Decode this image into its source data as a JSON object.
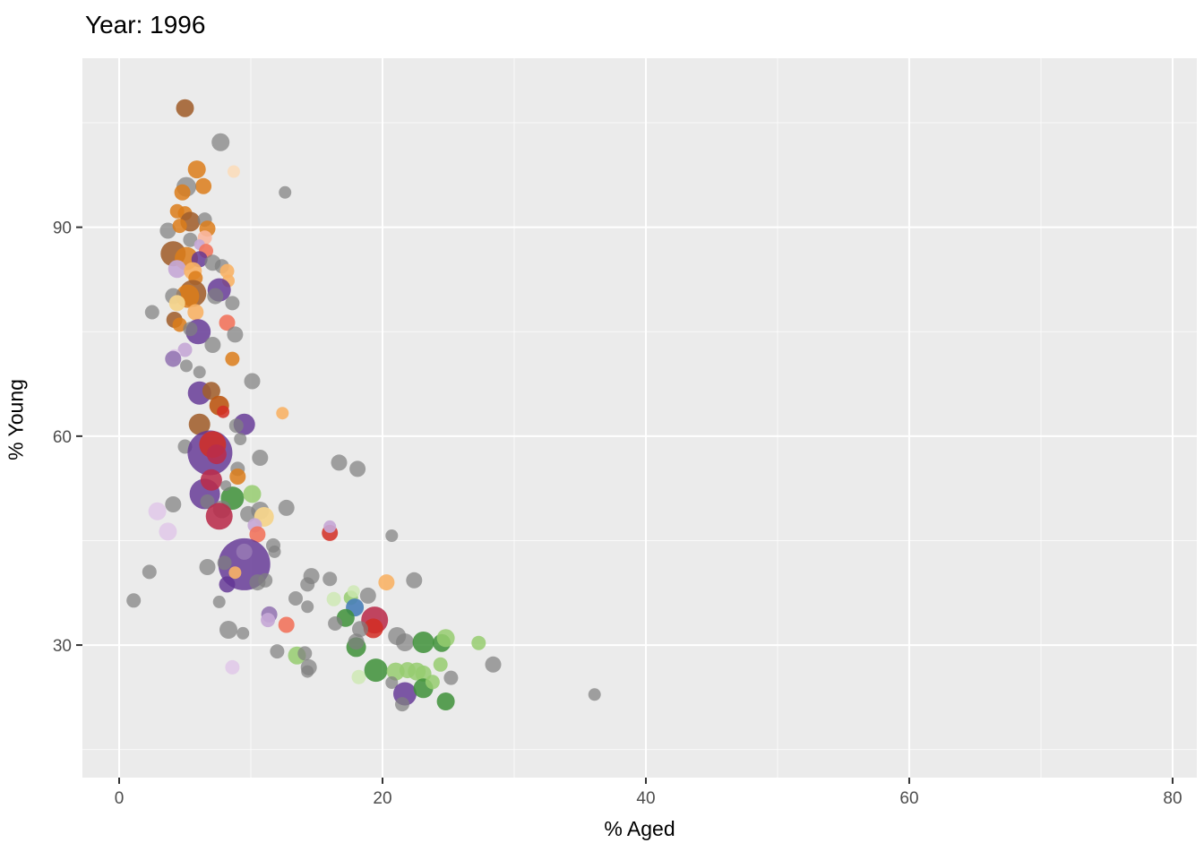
{
  "title": "Year: 1996",
  "labels": {
    "x_axis": "% Aged",
    "y_axis": "% Young"
  },
  "chart_data": {
    "type": "scatter",
    "title": "Year: 1996",
    "xlabel": "% Aged",
    "ylabel": "% Young",
    "x_ticks": [
      0,
      20,
      40,
      60,
      80
    ],
    "x_minor_ticks": [
      10,
      30,
      50,
      70
    ],
    "y_ticks": [
      30,
      60,
      90
    ],
    "y_minor_ticks": [
      15,
      45,
      75,
      105
    ],
    "xlim": [
      -2.79,
      81.84
    ],
    "ylim": [
      10.97,
      114.27
    ],
    "grid": "on",
    "legend": "none",
    "panel_bg": "#EBEBEB",
    "grid_major_color": "#FFFFFF",
    "grid_minor_color": "#FFFFFF",
    "tick_color": "#333333",
    "tick_label_color": "#4d4d4d",
    "palette": {
      "gray": "rgba(128,128,128,0.72)",
      "brown": "rgba(161,95,44,0.88)",
      "orange": "rgba(220,125,26,0.85)",
      "orange-dark": "rgba(188,88,20,0.9)",
      "orange-light": "rgba(248,178,102,0.9)",
      "orange-pale": "rgba(250,221,190,0.95)",
      "khaki": "rgba(244,212,140,0.95)",
      "pink": "rgba(250,183,160,0.9)",
      "salmon": "rgba(242,116,93,0.9)",
      "red": "rgba(210,45,35,0.85)",
      "crimson": "rgba(185,44,75,0.88)",
      "purple": "rgba(98,52,148,0.82)",
      "purple-med": "rgba(150,120,180,0.9)",
      "purple-light": "rgba(198,168,214,0.92)",
      "purple-pale": "rgba(226,203,233,0.95)",
      "green": "rgba(62,145,56,0.85)",
      "green-light": "rgba(150,204,112,0.85)",
      "green-pale": "rgba(205,232,178,0.8)",
      "blue": "rgba(72,126,184,0.9)"
    },
    "points": [
      [
        5.0,
        107.1,
        10,
        "brown"
      ],
      [
        7.7,
        102.2,
        10,
        "gray"
      ],
      [
        8.7,
        98.0,
        7,
        "orange-pale"
      ],
      [
        12.6,
        95.0,
        7,
        "gray"
      ],
      [
        5.9,
        98.3,
        10,
        "orange"
      ],
      [
        6.4,
        95.9,
        9,
        "orange"
      ],
      [
        5.1,
        95.8,
        11,
        "gray"
      ],
      [
        4.8,
        95.0,
        9,
        "orange"
      ],
      [
        4.4,
        92.3,
        8,
        "orange"
      ],
      [
        5.0,
        92.0,
        8,
        "orange"
      ],
      [
        5.4,
        90.8,
        11,
        "brown"
      ],
      [
        6.5,
        91.1,
        8,
        "gray"
      ],
      [
        3.7,
        89.5,
        9,
        "gray"
      ],
      [
        4.6,
        90.2,
        8,
        "orange"
      ],
      [
        6.7,
        89.8,
        9,
        "orange"
      ],
      [
        6.5,
        88.5,
        8,
        "pink"
      ],
      [
        5.4,
        88.2,
        8,
        "gray"
      ],
      [
        6.1,
        87.5,
        6,
        "purple-light"
      ],
      [
        6.6,
        86.6,
        8,
        "salmon"
      ],
      [
        4.1,
        86.2,
        14,
        "brown"
      ],
      [
        5.1,
        85.5,
        13,
        "orange"
      ],
      [
        6.1,
        85.4,
        9,
        "purple"
      ],
      [
        7.1,
        84.9,
        9,
        "gray"
      ],
      [
        7.8,
        84.4,
        8,
        "gray"
      ],
      [
        8.2,
        83.7,
        8,
        "orange-light"
      ],
      [
        4.4,
        84.0,
        10,
        "purple-light"
      ],
      [
        5.6,
        83.7,
        10,
        "orange-light"
      ],
      [
        5.8,
        82.7,
        8,
        "orange"
      ],
      [
        8.3,
        82.3,
        7,
        "orange-light"
      ],
      [
        7.6,
        81.0,
        13,
        "purple"
      ],
      [
        5.6,
        80.5,
        15,
        "brown"
      ],
      [
        5.2,
        80.1,
        13,
        "orange"
      ],
      [
        7.3,
        80.1,
        9,
        "gray"
      ],
      [
        4.1,
        80.1,
        9,
        "gray"
      ],
      [
        4.4,
        79.1,
        9,
        "khaki"
      ],
      [
        8.6,
        79.1,
        8,
        "gray"
      ],
      [
        2.5,
        77.8,
        8,
        "gray"
      ],
      [
        5.8,
        77.8,
        9,
        "orange-light"
      ],
      [
        4.2,
        76.7,
        9,
        "brown"
      ],
      [
        4.6,
        76.0,
        8,
        "orange"
      ],
      [
        8.2,
        76.3,
        9,
        "salmon"
      ],
      [
        6.0,
        75.0,
        14,
        "purple"
      ],
      [
        5.4,
        75.4,
        8,
        "gray"
      ],
      [
        7.1,
        73.1,
        9,
        "gray"
      ],
      [
        8.8,
        74.6,
        9,
        "gray"
      ],
      [
        5.0,
        72.4,
        8,
        "purple-light"
      ],
      [
        4.2,
        71.6,
        7,
        "purple-pale"
      ],
      [
        4.1,
        71.1,
        9,
        "purple-med"
      ],
      [
        6.1,
        69.2,
        7,
        "gray"
      ],
      [
        5.1,
        70.1,
        7,
        "gray"
      ],
      [
        8.6,
        71.1,
        8,
        "orange"
      ],
      [
        10.1,
        67.9,
        9,
        "gray"
      ],
      [
        6.1,
        66.2,
        13,
        "purple"
      ],
      [
        7.0,
        66.5,
        10,
        "brown"
      ],
      [
        7.6,
        64.4,
        11,
        "orange-dark"
      ],
      [
        7.9,
        63.5,
        7,
        "red"
      ],
      [
        12.4,
        63.3,
        7,
        "orange-light"
      ],
      [
        9.5,
        61.7,
        12,
        "purple"
      ],
      [
        8.9,
        61.5,
        8,
        "gray"
      ],
      [
        9.2,
        59.6,
        7,
        "gray"
      ],
      [
        6.1,
        61.7,
        12,
        "brown"
      ],
      [
        5.0,
        58.5,
        8,
        "gray"
      ],
      [
        6.9,
        57.6,
        25,
        "purple"
      ],
      [
        7.1,
        58.8,
        15,
        "red"
      ],
      [
        7.4,
        57.4,
        11,
        "crimson"
      ],
      [
        10.7,
        56.9,
        9,
        "gray"
      ],
      [
        9.0,
        55.3,
        8,
        "gray"
      ],
      [
        9.0,
        54.2,
        9,
        "orange"
      ],
      [
        6.5,
        51.7,
        17,
        "purple"
      ],
      [
        7.0,
        53.7,
        12,
        "crimson"
      ],
      [
        8.6,
        51.1,
        13,
        "green"
      ],
      [
        10.1,
        51.7,
        10,
        "green-light"
      ],
      [
        8.1,
        52.9,
        6,
        "gray"
      ],
      [
        6.7,
        50.6,
        8,
        "gray"
      ],
      [
        7.8,
        49.5,
        10,
        "gray"
      ],
      [
        7.6,
        48.5,
        15,
        "crimson"
      ],
      [
        4.1,
        50.2,
        9,
        "gray"
      ],
      [
        2.9,
        49.2,
        10,
        "purple-pale"
      ],
      [
        3.7,
        46.3,
        10,
        "purple-pale"
      ],
      [
        9.8,
        48.8,
        9,
        "gray"
      ],
      [
        10.7,
        49.3,
        10,
        "gray"
      ],
      [
        11.0,
        48.4,
        11,
        "khaki"
      ],
      [
        10.3,
        47.2,
        8,
        "purple-light"
      ],
      [
        10.5,
        45.9,
        9,
        "salmon"
      ],
      [
        11.7,
        44.3,
        8,
        "gray"
      ],
      [
        11.8,
        43.4,
        7,
        "gray"
      ],
      [
        9.5,
        41.6,
        29,
        "purple"
      ],
      [
        9.5,
        43.4,
        9,
        "purple-med"
      ],
      [
        8.8,
        40.4,
        7,
        "orange-light"
      ],
      [
        6.7,
        41.2,
        9,
        "gray"
      ],
      [
        8.0,
        41.8,
        8,
        "gray"
      ],
      [
        8.2,
        38.7,
        9,
        "purple"
      ],
      [
        10.5,
        39.0,
        9,
        "gray"
      ],
      [
        11.1,
        39.3,
        8,
        "gray"
      ],
      [
        2.3,
        40.5,
        8,
        "gray"
      ],
      [
        12.7,
        49.7,
        9,
        "gray"
      ],
      [
        1.1,
        36.4,
        8,
        "gray"
      ],
      [
        7.6,
        36.2,
        7,
        "gray"
      ],
      [
        11.4,
        34.4,
        9,
        "purple-med"
      ],
      [
        11.3,
        33.6,
        8,
        "purple-light"
      ],
      [
        12.7,
        32.9,
        9,
        "salmon"
      ],
      [
        8.3,
        32.2,
        10,
        "gray"
      ],
      [
        9.4,
        31.7,
        7,
        "gray"
      ],
      [
        12.0,
        29.1,
        8,
        "gray"
      ],
      [
        8.6,
        26.8,
        8,
        "purple-pale"
      ],
      [
        16.7,
        56.2,
        9,
        "gray"
      ],
      [
        18.1,
        55.3,
        9,
        "gray"
      ],
      [
        16.0,
        46.1,
        9,
        "red"
      ],
      [
        16.0,
        47.0,
        7,
        "purple-light"
      ],
      [
        20.7,
        45.7,
        7,
        "gray"
      ],
      [
        14.6,
        39.9,
        9,
        "gray"
      ],
      [
        16.0,
        39.5,
        8,
        "gray"
      ],
      [
        14.3,
        38.7,
        8,
        "gray"
      ],
      [
        13.4,
        36.7,
        8,
        "gray"
      ],
      [
        14.3,
        35.5,
        7,
        "gray"
      ],
      [
        16.3,
        36.6,
        8,
        "green-pale"
      ],
      [
        17.6,
        36.8,
        8,
        "green-light"
      ],
      [
        17.8,
        37.7,
        7,
        "green-pale"
      ],
      [
        20.3,
        39.0,
        9,
        "orange-light"
      ],
      [
        22.4,
        39.3,
        9,
        "gray"
      ],
      [
        18.9,
        37.1,
        9,
        "gray"
      ],
      [
        17.9,
        35.4,
        10,
        "blue"
      ],
      [
        17.2,
        33.9,
        10,
        "green"
      ],
      [
        16.4,
        33.1,
        8,
        "gray"
      ],
      [
        19.4,
        33.6,
        15,
        "crimson"
      ],
      [
        19.3,
        32.4,
        11,
        "red"
      ],
      [
        18.3,
        32.3,
        9,
        "gray"
      ],
      [
        21.1,
        31.3,
        10,
        "gray"
      ],
      [
        21.7,
        30.4,
        10,
        "gray"
      ],
      [
        18.0,
        29.7,
        11,
        "green"
      ],
      [
        18.0,
        30.5,
        9,
        "gray"
      ],
      [
        13.5,
        28.5,
        10,
        "green-light"
      ],
      [
        14.1,
        28.8,
        8,
        "gray"
      ],
      [
        14.4,
        26.8,
        9,
        "gray"
      ],
      [
        14.3,
        26.2,
        7,
        "gray"
      ],
      [
        18.2,
        25.4,
        8,
        "green-pale"
      ],
      [
        19.5,
        26.4,
        13,
        "green"
      ],
      [
        21.0,
        26.2,
        10,
        "green-light"
      ],
      [
        21.9,
        26.4,
        9,
        "green-light"
      ],
      [
        22.6,
        26.2,
        10,
        "green-light"
      ],
      [
        23.1,
        25.9,
        9,
        "green-light"
      ],
      [
        25.2,
        25.3,
        8,
        "gray"
      ],
      [
        20.7,
        24.6,
        7,
        "gray"
      ],
      [
        21.7,
        23.0,
        13,
        "purple"
      ],
      [
        23.1,
        23.8,
        11,
        "green"
      ],
      [
        23.8,
        24.7,
        8,
        "green-light"
      ],
      [
        21.5,
        21.5,
        8,
        "gray"
      ],
      [
        24.8,
        21.9,
        10,
        "green"
      ],
      [
        23.1,
        30.4,
        12,
        "green"
      ],
      [
        24.5,
        30.3,
        10,
        "green"
      ],
      [
        24.8,
        31.0,
        10,
        "green-light"
      ],
      [
        27.3,
        30.3,
        8,
        "green-light"
      ],
      [
        28.4,
        27.2,
        9,
        "gray"
      ],
      [
        24.4,
        27.2,
        8,
        "green-light"
      ],
      [
        36.1,
        22.9,
        7,
        "gray"
      ]
    ]
  }
}
